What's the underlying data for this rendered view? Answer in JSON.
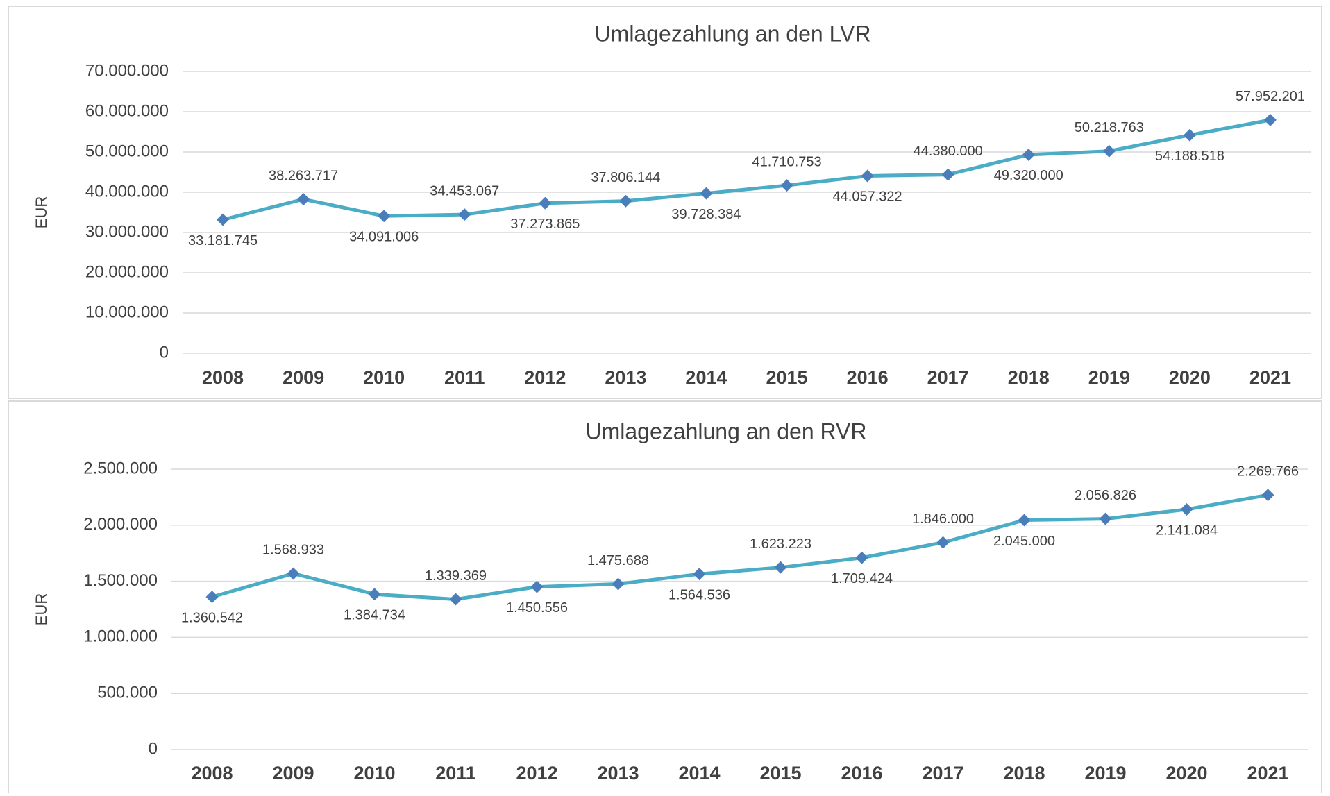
{
  "chart_data": [
    {
      "type": "line",
      "title": "Umlagezahlung an den LVR",
      "y_label": "EUR",
      "categories": [
        "2008",
        "2009",
        "2010",
        "2011",
        "2012",
        "2013",
        "2014",
        "2015",
        "2016",
        "2017",
        "2018",
        "2019",
        "2020",
        "2021"
      ],
      "series": [
        {
          "name": "Umlagezahlung an den LVR",
          "color": "#4bacc6",
          "marker_color": "#4a7ebb",
          "values": [
            33181745,
            38263717,
            34091006,
            34453067,
            37273865,
            37806144,
            39728384,
            41710753,
            44057322,
            44380000,
            49320000,
            50218763,
            54188518,
            57952201
          ],
          "value_labels": [
            "33.181.745",
            "38.263.717",
            "34.091.006",
            "34.453.067",
            "37.273.865",
            "37.806.144",
            "39.728.384",
            "41.710.753",
            "44.057.322",
            "44.380.000",
            "49.320.000",
            "50.218.763",
            "54.188.518",
            "57.952.201"
          ]
        }
      ],
      "ylim": [
        0,
        70000000
      ],
      "yticks": [
        0,
        {
          "value": 10000000,
          "label": "10.000.000"
        },
        {
          "value": 20000000,
          "label": "20.000.000"
        },
        {
          "value": 30000000,
          "label": "30.000.000"
        },
        {
          "value": 40000000,
          "label": "40.000.000"
        },
        {
          "value": 50000000,
          "label": "50.000.000"
        },
        {
          "value": 60000000,
          "label": "60.000.000"
        },
        {
          "value": 70000000,
          "label": "70.000.000"
        }
      ],
      "grid": true
    },
    {
      "type": "line",
      "title": "Umlagezahlung an den RVR",
      "y_label": "EUR",
      "categories": [
        "2008",
        "2009",
        "2010",
        "2011",
        "2012",
        "2013",
        "2014",
        "2015",
        "2016",
        "2017",
        "2018",
        "2019",
        "2020",
        "2021"
      ],
      "series": [
        {
          "name": "Umlagezahlung an den RVR",
          "color": "#4bacc6",
          "marker_color": "#4a7ebb",
          "values": [
            1360542,
            1568933,
            1384734,
            1339369,
            1450556,
            1475688,
            1564536,
            1623223,
            1709424,
            1846000,
            2045000,
            2056826,
            2141084,
            2269766
          ],
          "value_labels": [
            "1.360.542",
            "1.568.933",
            "1.384.734",
            "1.339.369",
            "1.450.556",
            "1.475.688",
            "1.564.536",
            "1.623.223",
            "1.709.424",
            "1.846.000",
            "2.045.000",
            "2.056.826",
            "2.141.084",
            "2.269.766"
          ]
        }
      ],
      "ylim": [
        0,
        2500000
      ],
      "yticks": [
        0,
        {
          "value": 500000,
          "label": "500.000"
        },
        {
          "value": 1000000,
          "label": "1.000.000"
        },
        {
          "value": 1500000,
          "label": "1.500.000"
        },
        {
          "value": 2000000,
          "label": "2.000.000"
        },
        {
          "value": 2500000,
          "label": "2.500.000"
        }
      ],
      "grid": true
    }
  ]
}
